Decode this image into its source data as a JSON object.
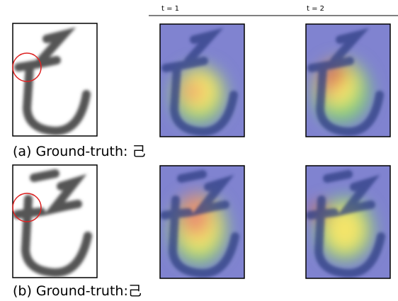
{
  "header": {
    "labels": [
      "t = 1",
      "t = 2"
    ]
  },
  "rows": [
    {
      "caption": "(a) Ground-truth: 己"
    },
    {
      "caption": "(b) Ground-truth:己"
    }
  ]
}
